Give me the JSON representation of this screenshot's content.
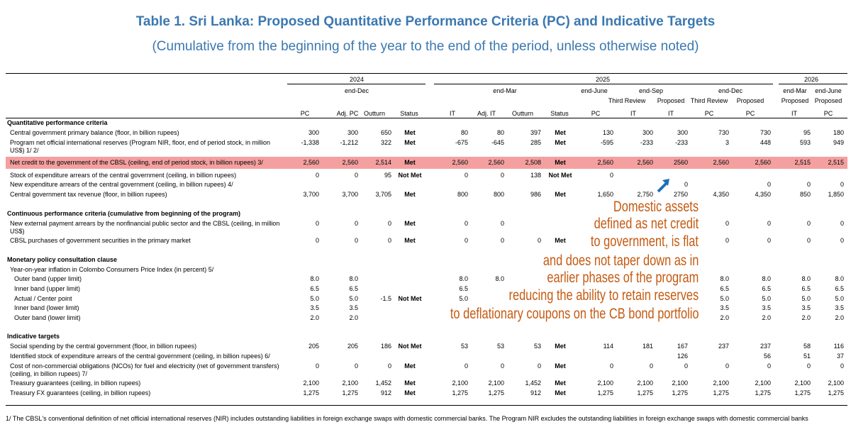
{
  "title": "Table 1. Sri Lanka: Proposed Quantitative Performance Criteria (PC) and Indicative Targets",
  "subtitle": "(Cumulative from the beginning of the year to the end of the period, unless otherwise noted)",
  "table": {
    "year_headers": [
      "2024",
      "2025",
      "2026"
    ],
    "period_headers": [
      "end-Dec",
      "end-Mar",
      "end-June",
      "end-Sep",
      "end-Dec",
      "end-Mar",
      "end-June"
    ],
    "review_headers": [
      "Third Review",
      "Proposed",
      "Third Review",
      "Proposed",
      "Proposed",
      "Proposed"
    ],
    "columns": [
      "PC",
      "Adj. PC",
      "Outturn",
      "Status",
      "IT",
      "Adj. IT",
      "Outturn",
      "Status",
      "PC",
      "IT",
      "IT",
      "PC",
      "PC",
      "IT",
      "PC"
    ],
    "sections": [
      {
        "title": "Quantitative performance criteria",
        "rows": [
          {
            "label": "Central government primary balance (floor, in billion rupees)",
            "cells": [
              "300",
              "300",
              "650",
              "Met",
              "80",
              "80",
              "397",
              "Met",
              "130",
              "300",
              "300",
              "730",
              "730",
              "95",
              "180"
            ]
          },
          {
            "label": "Program net official international reserves (Program NIR, floor, end of period stock, in million US$) 1/ 2/",
            "cells": [
              "-1,338",
              "-1,212",
              "322",
              "Met",
              "-675",
              "-645",
              "285",
              "Met",
              "-595",
              "-233",
              "-233",
              "3",
              "448",
              "593",
              "949"
            ]
          },
          {
            "label": "Net credit to the government of the CBSL (ceiling, end of period stock, in billion rupees) 3/",
            "highlight": true,
            "cells": [
              "2,560",
              "2,560",
              "2,514",
              "Met",
              "2,560",
              "2,560",
              "2,508",
              "Met",
              "2,560",
              "2,560",
              "2560",
              "2,560",
              "2,560",
              "2,515",
              "2,515"
            ]
          },
          {
            "label": "Stock of expenditure arrears of the central government (ceiling, in billion rupees)",
            "cells": [
              "0",
              "0",
              "95",
              "Not Met",
              "0",
              "0",
              "138",
              "Not Met",
              "0",
              null,
              null,
              null,
              null,
              null,
              null
            ]
          },
          {
            "label": "New expenditure arrears of the central government (ceiling, in billion rupees) 4/",
            "cells": [
              null,
              null,
              null,
              null,
              null,
              null,
              null,
              null,
              null,
              null,
              "0",
              null,
              "0",
              "0",
              "0"
            ]
          },
          {
            "label": "Central government tax revenue (floor, in billion rupees)",
            "cells": [
              "3,700",
              "3,700",
              "3,705",
              "Met",
              "800",
              "800",
              "986",
              "Met",
              "1,650",
              "2,750",
              "2750",
              "4,350",
              "4,350",
              "850",
              "1,850"
            ]
          }
        ]
      },
      {
        "title": "Continuous performance criteria (cumulative from beginning of the program)",
        "rows": [
          {
            "label": "New external payment arrears by the nonfinancial public sector and the CBSL (ceiling, in million US$)",
            "cells": [
              "0",
              "0",
              "0",
              "Met",
              "0",
              "0",
              null,
              null,
              null,
              null,
              null,
              "0",
              "0",
              "0",
              "0"
            ]
          },
          {
            "label": "CBSL purchases of government securities in the primary market",
            "cells": [
              "0",
              "0",
              "0",
              "Met",
              "0",
              "0",
              "0",
              "Met",
              null,
              null,
              null,
              "0",
              "0",
              "0",
              "0"
            ]
          }
        ]
      },
      {
        "title": "Monetary policy consultation clause",
        "rows": [
          {
            "label": "Year-on-year inflation in Colombo Consumers Price Index (in percent) 5/",
            "cells": [
              null,
              null,
              null,
              null,
              null,
              null,
              null,
              null,
              null,
              null,
              null,
              null,
              null,
              null,
              null
            ]
          },
          {
            "label": "Outer band (upper limit)",
            "level": 2,
            "cells": [
              "8.0",
              "8.0",
              null,
              null,
              "8.0",
              "8.0",
              null,
              null,
              null,
              null,
              null,
              "8.0",
              "8.0",
              "8.0",
              "8.0"
            ]
          },
          {
            "label": "Inner band (upper limit)",
            "level": 2,
            "cells": [
              "6.5",
              "6.5",
              null,
              null,
              "6.5",
              null,
              null,
              null,
              null,
              null,
              null,
              "6.5",
              "6.5",
              "6.5",
              "6.5"
            ]
          },
          {
            "label": "Actual / Center point",
            "level": 2,
            "cells": [
              "5.0",
              "5.0",
              "-1.5",
              "Not Met",
              "5.0",
              null,
              null,
              null,
              null,
              null,
              null,
              "5.0",
              "5.0",
              "5.0",
              "5.0"
            ]
          },
          {
            "label": "Inner band (lower limit)",
            "level": 2,
            "cells": [
              "3.5",
              "3.5",
              null,
              null,
              null,
              null,
              null,
              null,
              null,
              null,
              null,
              "3.5",
              "3.5",
              "3.5",
              "3.5"
            ]
          },
          {
            "label": "Outer band (lower limit)",
            "level": 2,
            "cells": [
              "2.0",
              "2.0",
              null,
              null,
              null,
              null,
              null,
              null,
              null,
              null,
              null,
              "2.0",
              "2.0",
              "2.0",
              "2.0"
            ]
          }
        ]
      },
      {
        "title": "Indicative targets",
        "rows": [
          {
            "label": "Social spending by the central government (floor, in billion rupees)",
            "cells": [
              "205",
              "205",
              "186",
              "Not Met",
              "53",
              "53",
              "53",
              "Met",
              "114",
              "181",
              "167",
              "237",
              "237",
              "58",
              "116"
            ]
          },
          {
            "label": "Identified stock of expenditure arrears of the central government (ceiling, in billion rupees) 6/",
            "cells": [
              null,
              null,
              null,
              null,
              null,
              null,
              null,
              null,
              null,
              null,
              "126",
              null,
              "56",
              "51",
              "37"
            ]
          },
          {
            "label": "Cost of non-commercial obligations (NCOs) for fuel and electricity (net of government transfers) (ceiling, in billion rupees) 7/",
            "cells": [
              "0",
              "0",
              "0",
              "Met",
              "0",
              "0",
              "0",
              "Met",
              "0",
              "0",
              "0",
              "0",
              "0",
              "0",
              "0"
            ]
          },
          {
            "label": "Treasury guarantees (ceiling, in billion rupees)",
            "cells": [
              "2,100",
              "2,100",
              "1,452",
              "Met",
              "2,100",
              "2,100",
              "1,452",
              "Met",
              "2,100",
              "2,100",
              "2,100",
              "2,100",
              "2,100",
              "2,100",
              "2,100"
            ]
          },
          {
            "label": "Treasury FX guarantees (ceiling, in billion rupees)",
            "cells": [
              "1,275",
              "1,275",
              "912",
              "Met",
              "1,275",
              "1,275",
              "912",
              "Met",
              "1,275",
              "1,275",
              "1,275",
              "1,275",
              "1,275",
              "1,275",
              "1,275"
            ]
          }
        ]
      }
    ]
  },
  "annotation": [
    "Domestic assets",
    "defined as net credit",
    "to government, is flat",
    "and does not taper down as in",
    "earlier phases of the program",
    "reducing the ability to retain reserves",
    "to deflationary coupons on the CB bond portfolio"
  ],
  "footnote": "1/ The CBSL's conventional definition of net official international reserves (NIR) includes outstanding liabilities in foreign exchange swaps with domestic commercial banks. The Program NIR excludes the outstanding liabilities in foreign exchange swaps with domestic commercial banks"
}
